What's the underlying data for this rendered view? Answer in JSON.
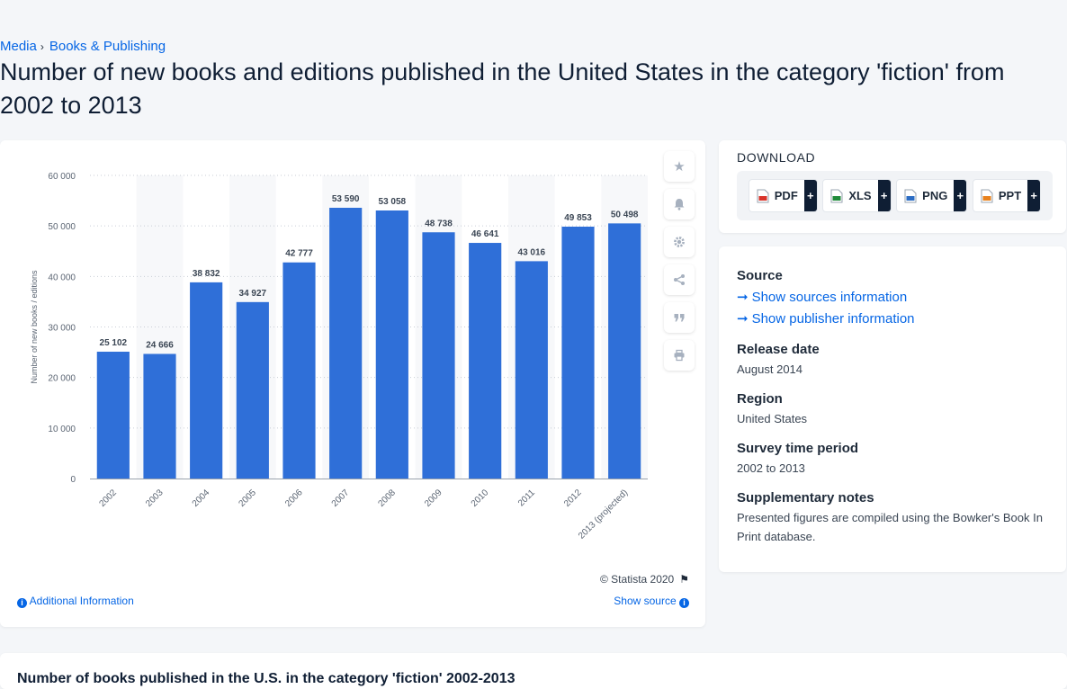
{
  "breadcrumb": {
    "items": [
      "Media",
      "Books & Publishing"
    ]
  },
  "page": {
    "title": "Number of new books and editions published in the United States in the category 'fiction' from 2002 to 2013"
  },
  "chart_data": {
    "type": "bar",
    "categories": [
      "2002",
      "2003",
      "2004",
      "2005",
      "2006",
      "2007",
      "2008",
      "2009",
      "2010",
      "2011",
      "2012",
      "2013 (projected)"
    ],
    "series": [
      {
        "values": [
          25102,
          24666,
          38832,
          34927,
          42777,
          53590,
          53058,
          48738,
          46641,
          43016,
          49853,
          50498
        ]
      }
    ],
    "data_labels": [
      "25 102",
      "24 666",
      "38 832",
      "34 927",
      "42 777",
      "53 590",
      "53 058",
      "48 738",
      "46 641",
      "43 016",
      "49 853",
      "50 498"
    ],
    "yticks": [
      0,
      10000,
      20000,
      30000,
      40000,
      50000,
      60000
    ],
    "ytick_labels": [
      "0",
      "10 000",
      "20 000",
      "30 000",
      "40 000",
      "50 000",
      "60 000"
    ],
    "ylim": [
      0,
      60000
    ],
    "ylabel": "Number of new books / editions",
    "xlabel": "",
    "grid": "horizontal dotted",
    "bar_color": "#2f6fd8"
  },
  "chart_footer": {
    "copyright": "© Statista 2020",
    "additional_info": "Additional Information",
    "show_source": "Show source"
  },
  "side_tools": [
    "star-icon",
    "bell-icon",
    "gear-icon",
    "share-icon",
    "quote-icon",
    "print-icon"
  ],
  "download": {
    "title": "DOWNLOAD",
    "formats": [
      {
        "label": "PDF",
        "color": "#d9342b"
      },
      {
        "label": "XLS",
        "color": "#1f8a3a"
      },
      {
        "label": "PNG",
        "color": "#2b6cc4"
      },
      {
        "label": "PPT",
        "color": "#e8821e"
      }
    ],
    "plus": "+"
  },
  "info": {
    "source_label": "Source",
    "show_sources": "Show sources information",
    "show_publisher": "Show publisher information",
    "release_label": "Release date",
    "release_value": "August 2014",
    "region_label": "Region",
    "region_value": "United States",
    "survey_label": "Survey time period",
    "survey_value": "2002 to 2013",
    "notes_label": "Supplementary notes",
    "notes_value": "Presented figures are compiled using the Bowker's Book In Print database."
  },
  "bottom": {
    "title": "Number of books published in the U.S. in the category 'fiction' 2002-2013"
  }
}
